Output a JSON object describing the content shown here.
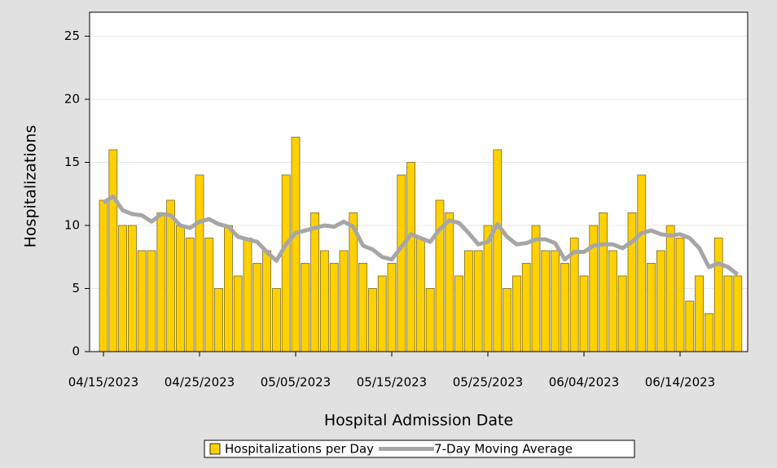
{
  "chart_data": {
    "type": "bar",
    "x_label": "Hospital Admission Date",
    "y_label": "Hospitalizations",
    "categories": [
      "04/15/2023",
      null,
      null,
      null,
      null,
      null,
      null,
      null,
      null,
      null,
      "04/25/2023",
      null,
      null,
      null,
      null,
      null,
      null,
      null,
      null,
      null,
      "05/05/2023",
      null,
      null,
      null,
      null,
      null,
      null,
      null,
      null,
      null,
      "05/15/2023",
      null,
      null,
      null,
      null,
      null,
      null,
      null,
      null,
      null,
      "05/25/2023",
      null,
      null,
      null,
      null,
      null,
      null,
      null,
      null,
      null,
      "06/04/2023",
      null,
      null,
      null,
      null,
      null,
      null,
      null,
      null,
      null,
      "06/14/2023",
      null,
      null,
      null,
      null,
      null,
      null
    ],
    "series": [
      {
        "name": "Hospitalizations per Day",
        "type": "bar",
        "color": "#ffd100",
        "values": [
          12,
          16,
          10,
          10,
          8,
          8,
          11,
          12,
          10,
          9,
          14,
          9,
          5,
          10,
          6,
          9,
          7,
          8,
          5,
          14,
          17,
          7,
          11,
          8,
          7,
          8,
          11,
          7,
          5,
          6,
          7,
          14,
          15,
          9,
          5,
          12,
          11,
          6,
          8,
          8,
          10,
          16,
          5,
          6,
          7,
          10,
          8,
          8,
          7,
          9,
          6,
          10,
          11,
          8,
          6,
          11,
          14,
          7,
          8,
          10,
          9,
          4,
          6,
          3,
          9,
          6,
          6
        ]
      },
      {
        "name": "7-Day Moving Average",
        "type": "line",
        "color": "#a6a6a6",
        "values": [
          11.8,
          12.3,
          11.2,
          10.9,
          10.8,
          10.3,
          10.9,
          10.8,
          10.0,
          9.8,
          10.3,
          10.5,
          10.1,
          9.9,
          9.1,
          8.9,
          8.7,
          7.9,
          7.2,
          8.5,
          9.4,
          9.6,
          9.8,
          10.0,
          9.9,
          10.3,
          9.9,
          8.4,
          8.1,
          7.5,
          7.3,
          8.3,
          9.3,
          9.0,
          8.7,
          9.7,
          10.4,
          10.2,
          9.4,
          8.5,
          8.7,
          10.1,
          9.1,
          8.5,
          8.6,
          8.9,
          8.9,
          8.6,
          7.3,
          7.9,
          7.9,
          8.4,
          8.5,
          8.5,
          8.2,
          8.7,
          9.4,
          9.6,
          9.3,
          9.2,
          9.3,
          9.0,
          8.2,
          6.7,
          7.0,
          6.7,
          6.1
        ]
      }
    ],
    "ylim": [
      0,
      26.9
    ],
    "yticks": [
      0,
      5,
      10,
      15,
      20,
      25
    ],
    "grid": true
  }
}
